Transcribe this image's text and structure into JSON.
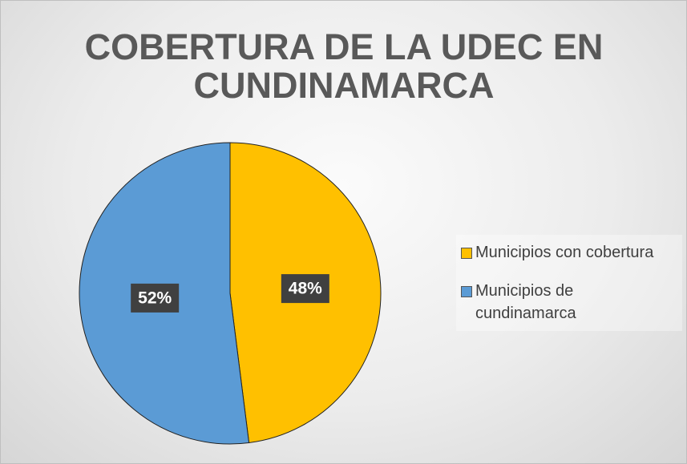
{
  "chart_data": {
    "type": "pie",
    "title": "COBERTURA DE LA UDEC EN CUNDINAMARCA",
    "categories": [
      "Municipios con cobertura",
      "Municipios de cundinamarca"
    ],
    "values": [
      48,
      52
    ],
    "value_labels": [
      "48%",
      "52%"
    ],
    "colors": [
      "#ffc000",
      "#5b9bd5"
    ],
    "legend": "right"
  }
}
